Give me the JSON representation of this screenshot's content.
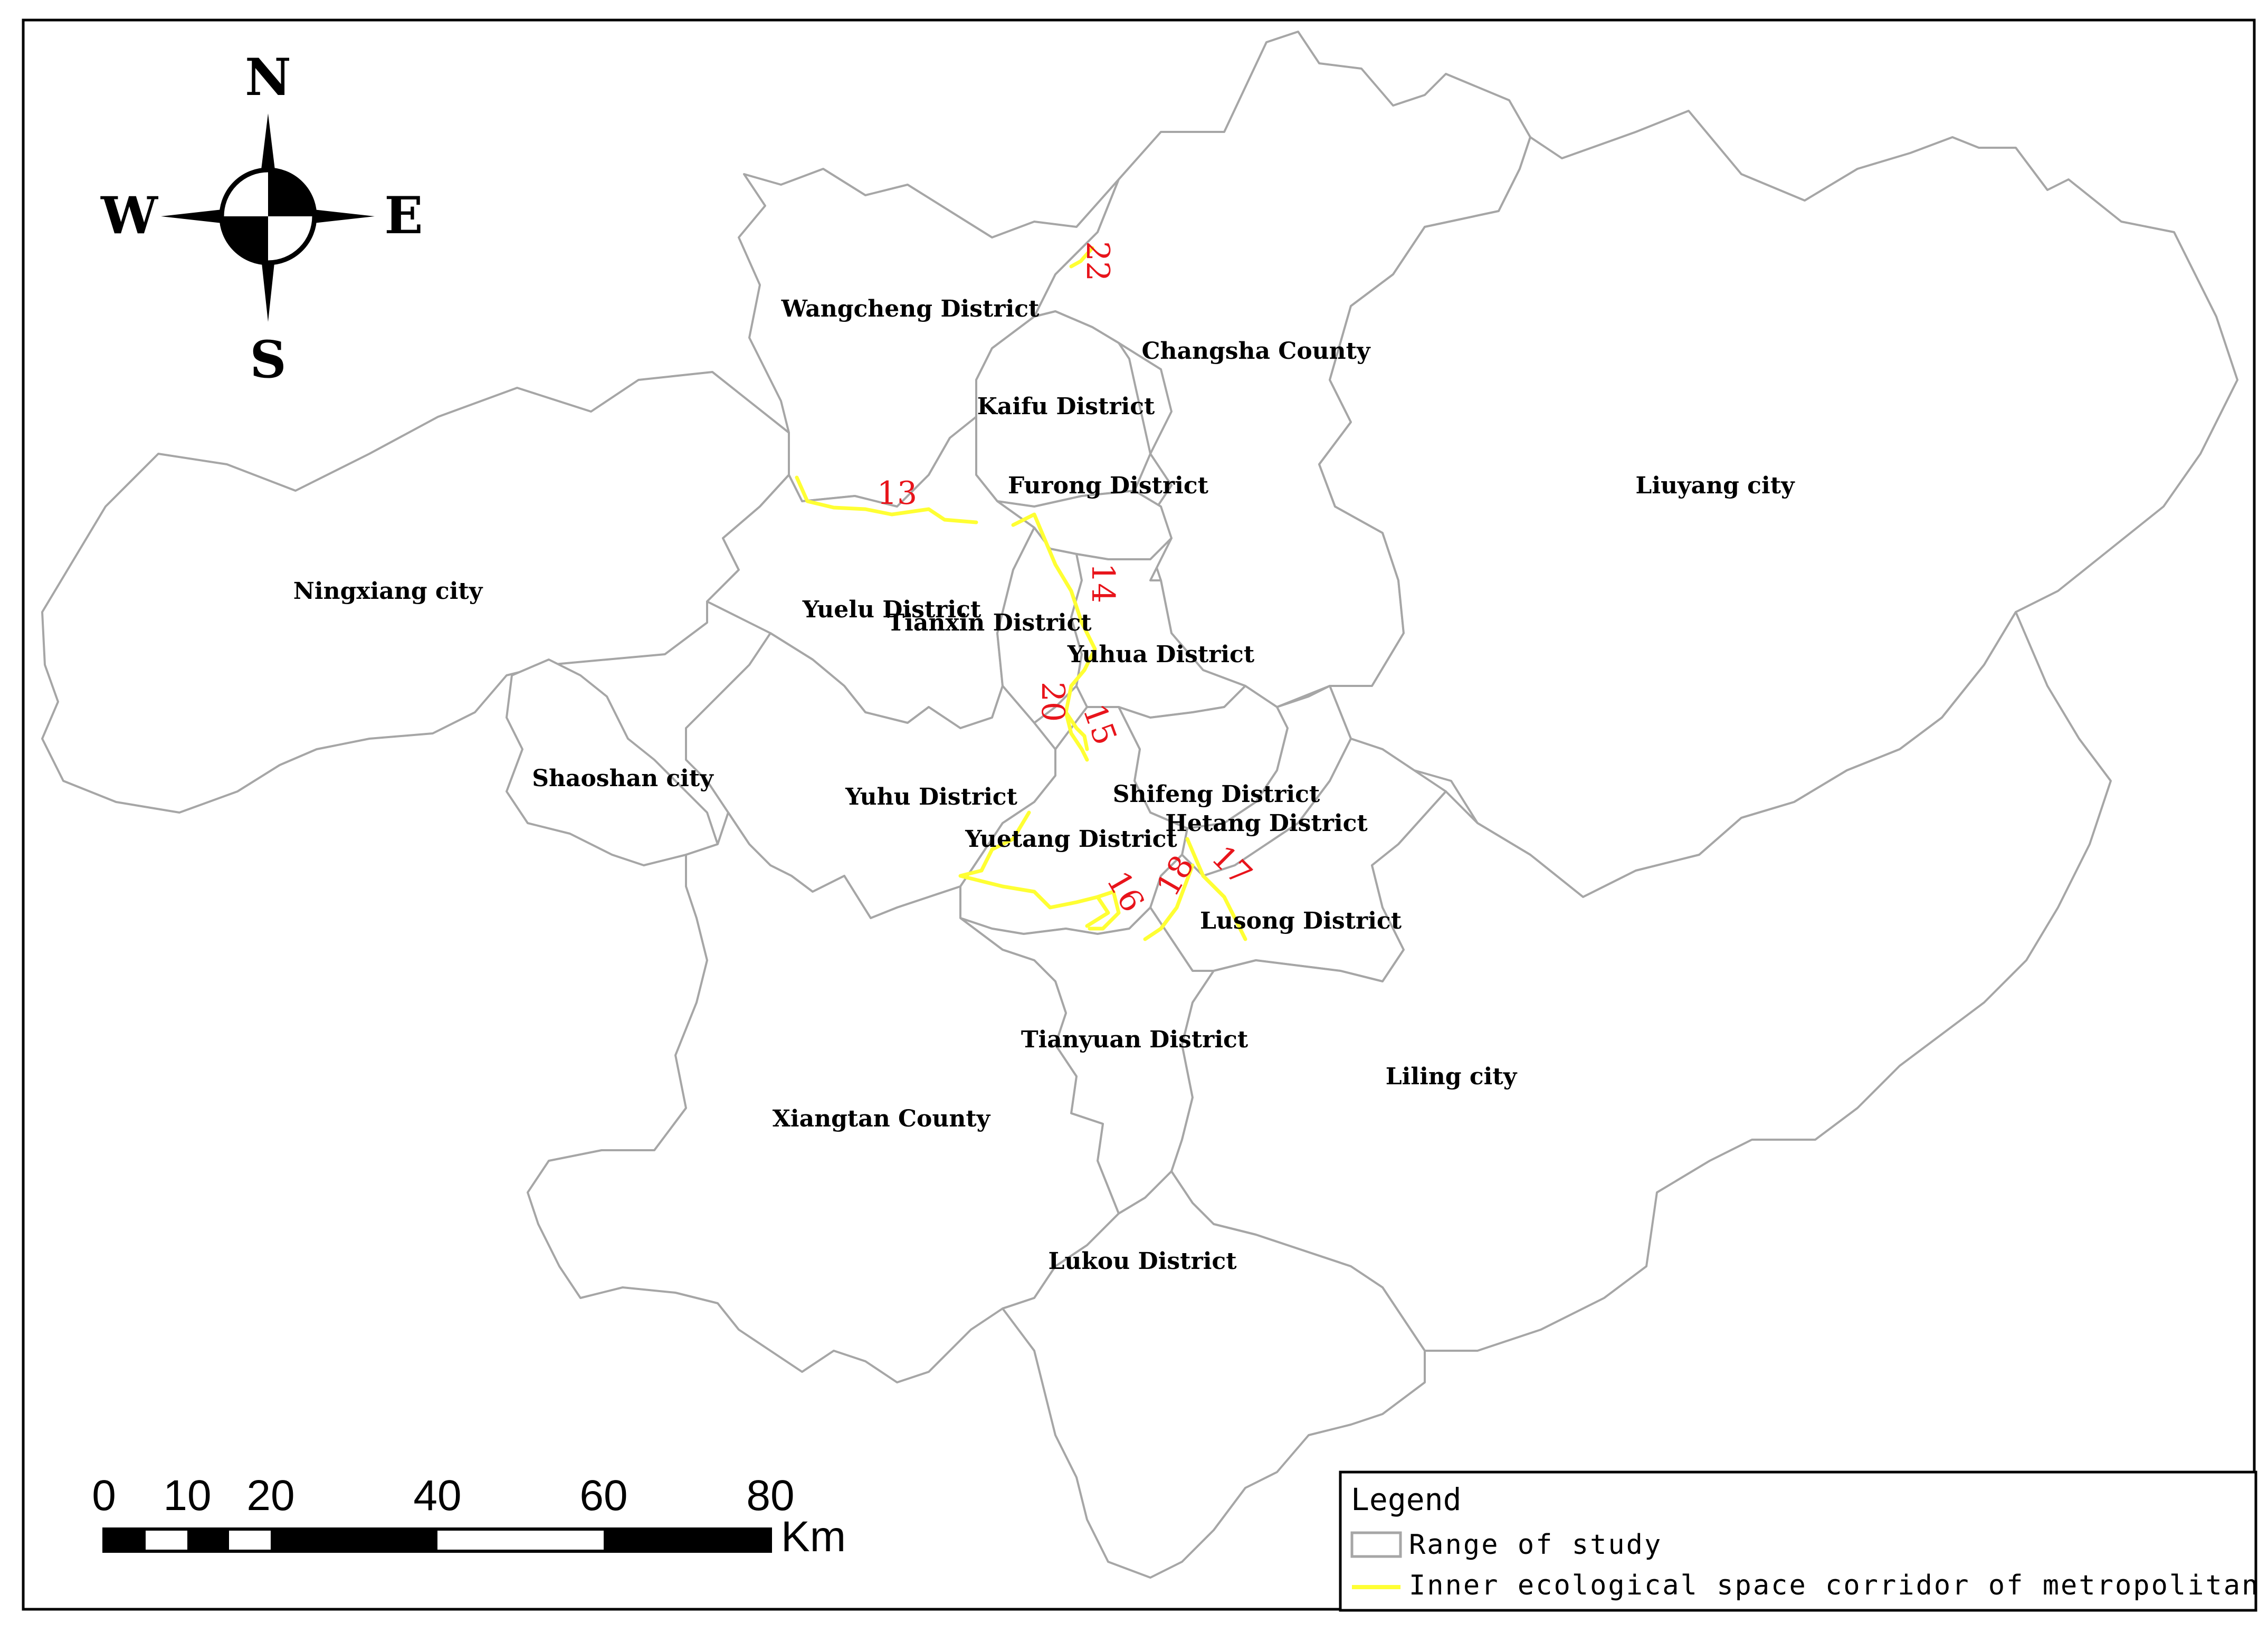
{
  "regions": [
    {
      "id": "ningxiang",
      "label": "Ningxiang city"
    },
    {
      "id": "wangcheng",
      "label": "Wangcheng District"
    },
    {
      "id": "changsha-county",
      "label": "Changsha County"
    },
    {
      "id": "kaifu",
      "label": "Kaifu District"
    },
    {
      "id": "furong",
      "label": "Furong District"
    },
    {
      "id": "liuyang",
      "label": "Liuyang city"
    },
    {
      "id": "yuelu",
      "label": "Yuelu District"
    },
    {
      "id": "tianxin",
      "label": "Tianxin District"
    },
    {
      "id": "yuhua",
      "label": "Yuhua District"
    },
    {
      "id": "shaoshan",
      "label": "Shaoshan city"
    },
    {
      "id": "yuhu",
      "label": "Yuhu District"
    },
    {
      "id": "shifeng",
      "label": "Shifeng District"
    },
    {
      "id": "hetang",
      "label": "Hetang District"
    },
    {
      "id": "yuetang",
      "label": "Yuetang District"
    },
    {
      "id": "lusong",
      "label": "Lusong District"
    },
    {
      "id": "tianyuan",
      "label": "Tianyuan District"
    },
    {
      "id": "liling",
      "label": "Liling city"
    },
    {
      "id": "xiangtan-county",
      "label": "Xiangtan County"
    },
    {
      "id": "lukou",
      "label": "Lukou District"
    }
  ],
  "corridors": [
    {
      "id": "13",
      "label": "13"
    },
    {
      "id": "14",
      "label": "14"
    },
    {
      "id": "15",
      "label": "15"
    },
    {
      "id": "16",
      "label": "16"
    },
    {
      "id": "17",
      "label": "17"
    },
    {
      "id": "18",
      "label": "18"
    },
    {
      "id": "20",
      "label": "20"
    },
    {
      "id": "22",
      "label": "22"
    }
  ],
  "compass": {
    "north": "N",
    "south": "S",
    "east": "E",
    "west": "W"
  },
  "scale_bar": {
    "ticks": [
      "0",
      "10",
      "20",
      "40",
      "60",
      "80"
    ],
    "unit": "Km"
  },
  "legend": {
    "title": "Legend",
    "items": [
      {
        "label": "Range of study",
        "symbol": "grey-outline-box",
        "color": "#a6a6a6"
      },
      {
        "label": "Inner ecological space corridor of metropolitan area",
        "symbol": "yellow-line",
        "color": "#ffff33"
      }
    ]
  },
  "colors": {
    "boundary": "#a6a6a6",
    "corridor": "#ffff33",
    "corridor_label": "#e8141b"
  }
}
